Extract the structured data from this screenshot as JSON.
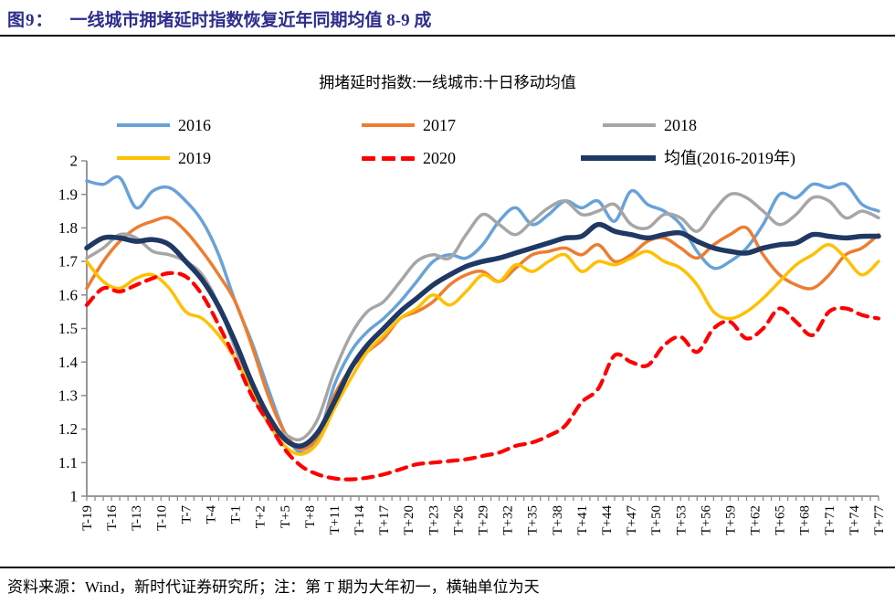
{
  "figure": {
    "label": "图9：",
    "title": "一线城市拥堵延时指数恢复近年同期均值 8-9 成"
  },
  "footer": {
    "text": "资料来源：Wind，新时代证券研究所；注：第 T 期为大年初一，横轴单位为天"
  },
  "colors": {
    "title_navy": "#2D2D8C",
    "axis_gray": "#8C8C8C"
  },
  "chart_data": {
    "type": "line",
    "title": "拥堵延时指数:一线城市:十日移动均值",
    "xlabel": "",
    "ylabel": "",
    "grid": false,
    "legend_position": "top",
    "xlim": [
      -19,
      77
    ],
    "ylim": [
      1,
      2
    ],
    "y_tick_labels": [
      "1",
      "1.1",
      "1.2",
      "1.3",
      "1.4",
      "1.5",
      "1.6",
      "1.7",
      "1.8",
      "1.9",
      "2"
    ],
    "x_tick_step": 3,
    "x_tick_labels": [
      "T-19",
      "T-16",
      "T-13",
      "T-10",
      "T-7",
      "T-4",
      "T-1",
      "T+2",
      "T+5",
      "T+8",
      "T+11",
      "T+14",
      "T+17",
      "T+20",
      "T+23",
      "T+26",
      "T+29",
      "T+32",
      "T+35",
      "T+38",
      "T+41",
      "T+44",
      "T+47",
      "T+50",
      "T+53",
      "T+56",
      "T+59",
      "T+62",
      "T+65",
      "T+68",
      "T+71",
      "T+74",
      "T+77"
    ],
    "x": [
      -19,
      -17,
      -15,
      -13,
      -11,
      -9,
      -7,
      -5,
      -3,
      -1,
      1,
      3,
      5,
      7,
      9,
      11,
      13,
      15,
      17,
      19,
      21,
      23,
      25,
      27,
      29,
      31,
      33,
      35,
      37,
      39,
      41,
      43,
      45,
      47,
      49,
      51,
      53,
      55,
      57,
      59,
      61,
      63,
      65,
      67,
      69,
      71,
      73,
      75,
      77
    ],
    "series": [
      {
        "name": "2016",
        "color": "#68A2D8",
        "width": 3.5,
        "dash": "",
        "values": [
          1.94,
          1.93,
          1.95,
          1.86,
          1.91,
          1.92,
          1.88,
          1.82,
          1.72,
          1.58,
          1.46,
          1.32,
          1.19,
          1.13,
          1.17,
          1.33,
          1.43,
          1.49,
          1.53,
          1.58,
          1.64,
          1.7,
          1.72,
          1.71,
          1.75,
          1.82,
          1.86,
          1.81,
          1.84,
          1.88,
          1.86,
          1.88,
          1.82,
          1.91,
          1.87,
          1.85,
          1.81,
          1.73,
          1.68,
          1.7,
          1.74,
          1.81,
          1.9,
          1.89,
          1.93,
          1.92,
          1.93,
          1.87,
          1.85
        ]
      },
      {
        "name": "2017",
        "color": "#ED7D31",
        "width": 3.5,
        "dash": "",
        "values": [
          1.62,
          1.7,
          1.76,
          1.8,
          1.82,
          1.83,
          1.79,
          1.73,
          1.66,
          1.58,
          1.45,
          1.3,
          1.19,
          1.14,
          1.18,
          1.3,
          1.38,
          1.43,
          1.47,
          1.53,
          1.55,
          1.58,
          1.63,
          1.66,
          1.67,
          1.64,
          1.68,
          1.72,
          1.73,
          1.74,
          1.72,
          1.75,
          1.7,
          1.72,
          1.76,
          1.77,
          1.74,
          1.71,
          1.75,
          1.78,
          1.8,
          1.72,
          1.66,
          1.63,
          1.62,
          1.66,
          1.72,
          1.74,
          1.78
        ]
      },
      {
        "name": "2018",
        "color": "#A6A6A6",
        "width": 3.5,
        "dash": "",
        "values": [
          1.71,
          1.74,
          1.78,
          1.77,
          1.73,
          1.72,
          1.7,
          1.66,
          1.57,
          1.44,
          1.31,
          1.22,
          1.185,
          1.17,
          1.23,
          1.37,
          1.48,
          1.55,
          1.58,
          1.64,
          1.7,
          1.72,
          1.71,
          1.78,
          1.84,
          1.81,
          1.78,
          1.82,
          1.86,
          1.88,
          1.84,
          1.85,
          1.87,
          1.81,
          1.8,
          1.84,
          1.83,
          1.79,
          1.85,
          1.9,
          1.89,
          1.85,
          1.81,
          1.84,
          1.89,
          1.88,
          1.83,
          1.85,
          1.83
        ]
      },
      {
        "name": "2019",
        "color": "#FFC000",
        "width": 3.5,
        "dash": "",
        "values": [
          1.7,
          1.64,
          1.62,
          1.65,
          1.66,
          1.62,
          1.55,
          1.53,
          1.48,
          1.41,
          1.32,
          1.22,
          1.15,
          1.125,
          1.16,
          1.26,
          1.35,
          1.43,
          1.48,
          1.53,
          1.56,
          1.6,
          1.57,
          1.61,
          1.66,
          1.64,
          1.69,
          1.67,
          1.7,
          1.72,
          1.67,
          1.7,
          1.69,
          1.71,
          1.73,
          1.7,
          1.68,
          1.63,
          1.55,
          1.53,
          1.55,
          1.59,
          1.64,
          1.69,
          1.72,
          1.75,
          1.71,
          1.66,
          1.7
        ]
      },
      {
        "name": "均值(2016-2019年)",
        "color": "#1F3864",
        "width": 5.5,
        "dash": "",
        "values": [
          1.74,
          1.77,
          1.77,
          1.76,
          1.765,
          1.75,
          1.7,
          1.645,
          1.565,
          1.46,
          1.34,
          1.24,
          1.17,
          1.15,
          1.19,
          1.28,
          1.38,
          1.45,
          1.5,
          1.55,
          1.59,
          1.63,
          1.66,
          1.685,
          1.7,
          1.71,
          1.725,
          1.74,
          1.755,
          1.77,
          1.775,
          1.81,
          1.79,
          1.78,
          1.77,
          1.78,
          1.785,
          1.76,
          1.74,
          1.73,
          1.725,
          1.74,
          1.75,
          1.755,
          1.78,
          1.775,
          1.77,
          1.775,
          1.775
        ]
      },
      {
        "name": "2020",
        "color": "#FE0000",
        "width": 4.2,
        "dash": "11 8",
        "values": [
          1.57,
          1.62,
          1.61,
          1.63,
          1.65,
          1.665,
          1.655,
          1.6,
          1.51,
          1.41,
          1.3,
          1.22,
          1.14,
          1.09,
          1.065,
          1.053,
          1.05,
          1.055,
          1.065,
          1.08,
          1.095,
          1.1,
          1.105,
          1.11,
          1.12,
          1.13,
          1.15,
          1.16,
          1.18,
          1.21,
          1.28,
          1.32,
          1.42,
          1.4,
          1.39,
          1.45,
          1.475,
          1.43,
          1.5,
          1.52,
          1.47,
          1.5,
          1.56,
          1.52,
          1.48,
          1.55,
          1.56,
          1.54,
          1.53
        ]
      }
    ],
    "legend_order": [
      "2016",
      "2017",
      "2018",
      "2019",
      "2020",
      "均值(2016-2019年)"
    ]
  }
}
